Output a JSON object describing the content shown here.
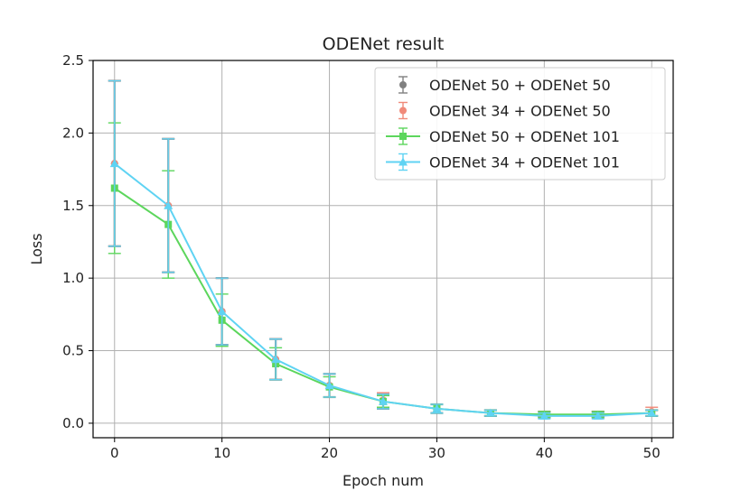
{
  "chart_data": {
    "type": "line",
    "title": "ODENet result",
    "xlabel": "Epoch num",
    "ylabel": "Loss",
    "xlim": [
      -2,
      52
    ],
    "ylim": [
      -0.1,
      2.5
    ],
    "xticks": [
      0,
      10,
      20,
      30,
      40,
      50
    ],
    "yticks": [
      0.0,
      0.5,
      1.0,
      1.5,
      2.0,
      2.5
    ],
    "grid": true,
    "legend_position": "top-right",
    "x": [
      0,
      5,
      10,
      15,
      20,
      25,
      30,
      35,
      40,
      45,
      50
    ],
    "series": [
      {
        "name": "ODENet 50 + ODENet 50",
        "color": "#808080",
        "marker": "circle",
        "line": false,
        "values": [
          1.79,
          1.5,
          0.77,
          0.44,
          0.26,
          0.15,
          0.1,
          0.07,
          0.06,
          0.06,
          0.07
        ],
        "errors": [
          0.57,
          0.46,
          0.23,
          0.14,
          0.08,
          0.05,
          0.03,
          0.02,
          0.02,
          0.02,
          0.02
        ]
      },
      {
        "name": "ODENet 34 + ODENet 50",
        "color": "#f08a7a",
        "marker": "circle",
        "line": false,
        "values": [
          1.79,
          1.5,
          0.77,
          0.44,
          0.26,
          0.16,
          0.1,
          0.07,
          0.06,
          0.06,
          0.08
        ],
        "errors": [
          0.57,
          0.46,
          0.23,
          0.14,
          0.08,
          0.05,
          0.03,
          0.02,
          0.02,
          0.02,
          0.03
        ]
      },
      {
        "name": "ODENet 50 + ODENet 101",
        "color": "#5cd65c",
        "marker": "square",
        "line": true,
        "values": [
          1.62,
          1.37,
          0.71,
          0.41,
          0.25,
          0.15,
          0.1,
          0.07,
          0.06,
          0.06,
          0.07
        ],
        "errors": [
          0.45,
          0.37,
          0.18,
          0.11,
          0.07,
          0.04,
          0.03,
          0.02,
          0.02,
          0.02,
          0.02
        ]
      },
      {
        "name": "ODENet 34 + ODENet 101",
        "color": "#5fd3f3",
        "marker": "triangle",
        "line": true,
        "values": [
          1.79,
          1.5,
          0.77,
          0.44,
          0.26,
          0.15,
          0.1,
          0.07,
          0.05,
          0.05,
          0.07
        ],
        "errors": [
          0.57,
          0.46,
          0.23,
          0.14,
          0.08,
          0.05,
          0.03,
          0.02,
          0.02,
          0.02,
          0.02
        ]
      }
    ]
  }
}
